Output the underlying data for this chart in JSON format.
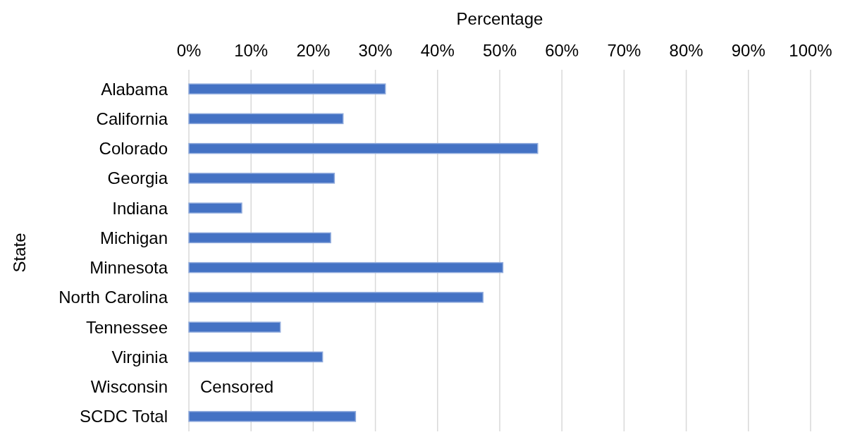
{
  "chart_data": {
    "type": "bar",
    "orientation": "horizontal",
    "xlabel": "Percentage",
    "ylabel": "State",
    "categories": [
      "Alabama",
      "California",
      "Colorado",
      "Georgia",
      "Indiana",
      "Michigan",
      "Minnesota",
      "North Carolina",
      "Tennessee",
      "Virginia",
      "Wisconsin",
      "SCDC Total"
    ],
    "values": [
      31.6,
      24.8,
      56.1,
      23.4,
      8.5,
      22.8,
      50.5,
      47.3,
      14.7,
      21.5,
      null,
      26.8
    ],
    "color": "#4472c4",
    "xlim": [
      0,
      100
    ],
    "xticks": [
      {
        "value": 0,
        "label": "0%"
      },
      {
        "value": 10,
        "label": "10%"
      },
      {
        "value": 20,
        "label": "20%"
      },
      {
        "value": 30,
        "label": "30%"
      },
      {
        "value": 40,
        "label": "40%"
      },
      {
        "value": 50,
        "label": "50%"
      },
      {
        "value": 60,
        "label": "60%"
      },
      {
        "value": 70,
        "label": "70%"
      },
      {
        "value": 80,
        "label": "80%"
      },
      {
        "value": 90,
        "label": "90%"
      },
      {
        "value": 100,
        "label": "100%"
      }
    ],
    "grid": "x",
    "annotations": [
      "Censored"
    ]
  }
}
